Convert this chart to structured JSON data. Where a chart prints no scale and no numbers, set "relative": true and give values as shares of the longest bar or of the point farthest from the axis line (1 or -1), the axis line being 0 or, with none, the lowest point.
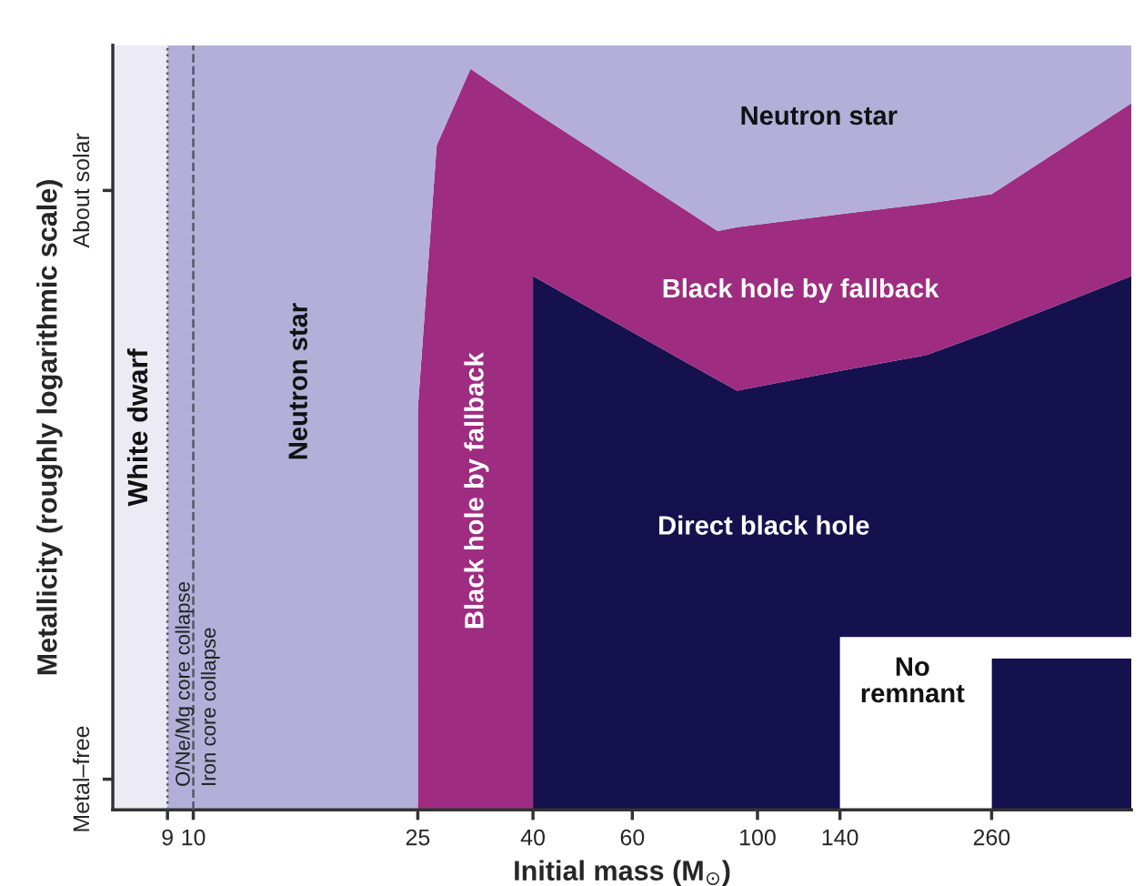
{
  "chart_data": {
    "type": "area",
    "stacked": true,
    "relative": true,
    "xlabel": "Initial mass (M$_{⊙}$)",
    "ylabel": "Metallicity (roughly logarithmic scale)",
    "log": "x",
    "xlim": [
      7.2,
      460
    ],
    "xticks": [
      9,
      10,
      25,
      40,
      60,
      100,
      140,
      260
    ],
    "x": [
      9,
      25,
      25,
      27,
      31,
      40,
      40,
      85,
      92,
      140,
      140,
      200,
      260,
      260,
      460
    ],
    "series": [
      {
        "color": "#14114e",
        "values": [
          0,
          0,
          0,
          0,
          0,
          0,
          0,
          0,
          0,
          0,
          0,
          0,
          0,
          0.198,
          0.198
        ]
      },
      {
        "name": "No\nremnant",
        "color": "#ffffff",
        "values": [
          0,
          0,
          0,
          0,
          0,
          0,
          0,
          0,
          0,
          0,
          0.226,
          0.226,
          0.226,
          0.028,
          0.028
        ]
      },
      {
        "name": "Direct black hole",
        "color": "#14114e",
        "values": [
          0,
          0,
          0,
          0,
          0,
          0,
          0.698,
          0.562,
          0.548,
          0.574,
          0.348,
          0.369,
          0.4,
          0.4,
          0.472
        ]
      },
      {
        "name": "Black hole by fallback",
        "color": "#9e2c80",
        "values": [
          0,
          0,
          0.524,
          0.869,
          0.969,
          0.914,
          0.216,
          0.195,
          0.214,
          0.205,
          0.205,
          0.198,
          0.179,
          0.179,
          0.226
        ]
      },
      {
        "name": "Neutron star",
        "color": "#b4afd9",
        "values": [
          1,
          1,
          0.476,
          0.131,
          0.031,
          0.086,
          0.086,
          0.243,
          0.238,
          0.221,
          0.221,
          0.207,
          0.195,
          0.195,
          0.076
        ]
      }
    ],
    "bands": [
      {
        "axis": "x",
        "from": 7.2,
        "to": 9,
        "label": "White dwarf",
        "color": "#eceaf4"
      }
    ],
    "ref_lines": [
      {
        "axis": "x",
        "value": 9,
        "label": "O/Ne/Mg core collapse",
        "line_style": "dotted",
        "color": "#555566"
      },
      {
        "axis": "x",
        "value": 10,
        "label": "Iron core collapse",
        "line_style": "dashed",
        "color": "#555566"
      }
    ],
    "annotations": [
      "Metal–free",
      "About solar",
      "Neutron star",
      "Black hole by fallback"
    ]
  }
}
